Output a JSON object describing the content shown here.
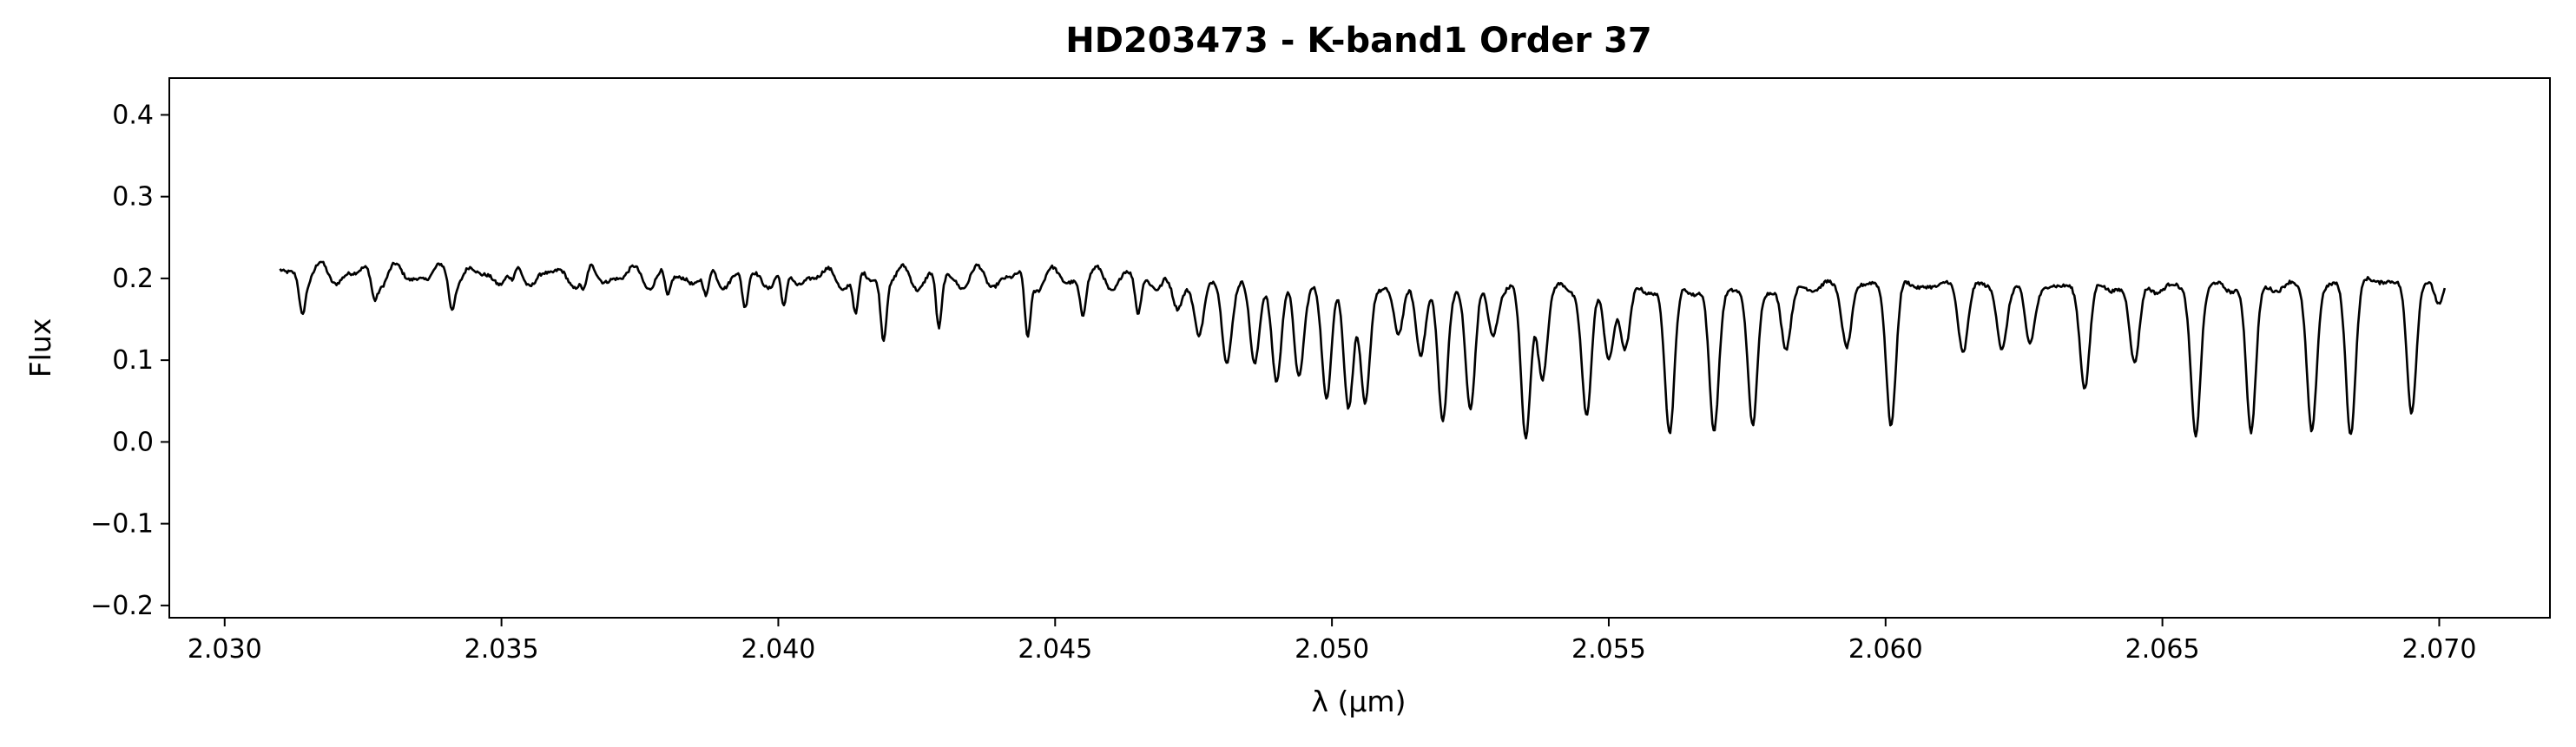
{
  "chart_data": {
    "type": "line",
    "title": "HD203473 - K-band1 Order 37",
    "xlabel": "λ (μm)",
    "ylabel": "Flux",
    "xlim": [
      2.029,
      2.072
    ],
    "ylim": [
      -0.215,
      0.445
    ],
    "xticks": [
      2.03,
      2.035,
      2.04,
      2.045,
      2.05,
      2.055,
      2.06,
      2.065,
      2.07
    ],
    "xtick_labels": [
      "2.030",
      "2.035",
      "2.040",
      "2.045",
      "2.050",
      "2.055",
      "2.060",
      "2.065",
      "2.070"
    ],
    "yticks": [
      -0.2,
      -0.1,
      0.0,
      0.1,
      0.2,
      0.3,
      0.4
    ],
    "ytick_labels": [
      "−0.2",
      "−0.1",
      "0.0",
      "0.1",
      "0.2",
      "0.3",
      "0.4"
    ],
    "grid": false,
    "line_color": "#000000",
    "series": [
      {
        "x_start": 2.031,
        "x_end": 2.0701,
        "continuum": [
          [
            2.031,
            0.205
          ],
          [
            2.044,
            0.2
          ],
          [
            2.046,
            0.2
          ],
          [
            2.048,
            0.195
          ],
          [
            2.052,
            0.19
          ],
          [
            2.056,
            0.185
          ],
          [
            2.06,
            0.192
          ],
          [
            2.064,
            0.188
          ],
          [
            2.068,
            0.19
          ],
          [
            2.0701,
            0.205
          ]
        ],
        "absorption_lines": [
          [
            2.0314,
            0.165
          ],
          [
            2.0327,
            0.18
          ],
          [
            2.0341,
            0.175
          ],
          [
            2.0352,
            0.185
          ],
          [
            2.0365,
            0.18
          ],
          [
            2.038,
            0.17
          ],
          [
            2.0387,
            0.165
          ],
          [
            2.0394,
            0.16
          ],
          [
            2.0401,
            0.15
          ],
          [
            2.0414,
            0.145
          ],
          [
            2.0419,
            0.13
          ],
          [
            2.0429,
            0.135
          ],
          [
            2.0445,
            0.125
          ],
          [
            2.0455,
            0.16
          ],
          [
            2.0465,
            0.155
          ],
          [
            2.0472,
            0.16
          ],
          [
            2.0476,
            0.13
          ],
          [
            2.0481,
            0.1
          ],
          [
            2.0486,
            0.095
          ],
          [
            2.049,
            0.075
          ],
          [
            2.0494,
            0.08
          ],
          [
            2.0499,
            0.05
          ],
          [
            2.0503,
            0.045
          ],
          [
            2.0506,
            0.04
          ],
          [
            2.0512,
            0.13
          ],
          [
            2.0516,
            0.11
          ],
          [
            2.052,
            0.02
          ],
          [
            2.0525,
            0.04
          ],
          [
            2.0529,
            0.13
          ],
          [
            2.0535,
            0.005
          ],
          [
            2.0538,
            0.08
          ],
          [
            2.0546,
            0.03
          ],
          [
            2.055,
            0.1
          ],
          [
            2.0553,
            0.115
          ],
          [
            2.0561,
            0.01
          ],
          [
            2.0569,
            0.01
          ],
          [
            2.0576,
            0.015
          ],
          [
            2.0582,
            0.11
          ],
          [
            2.0593,
            0.12
          ],
          [
            2.0601,
            0.025
          ],
          [
            2.0614,
            0.115
          ],
          [
            2.0621,
            0.115
          ],
          [
            2.0626,
            0.12
          ],
          [
            2.0636,
            0.07
          ],
          [
            2.0645,
            0.095
          ],
          [
            2.0656,
            0.01
          ],
          [
            2.0666,
            0.01
          ],
          [
            2.0677,
            0.015
          ],
          [
            2.0684,
            0.015
          ],
          [
            2.0695,
            0.03
          ],
          [
            2.07,
            0.165
          ]
        ]
      }
    ]
  }
}
